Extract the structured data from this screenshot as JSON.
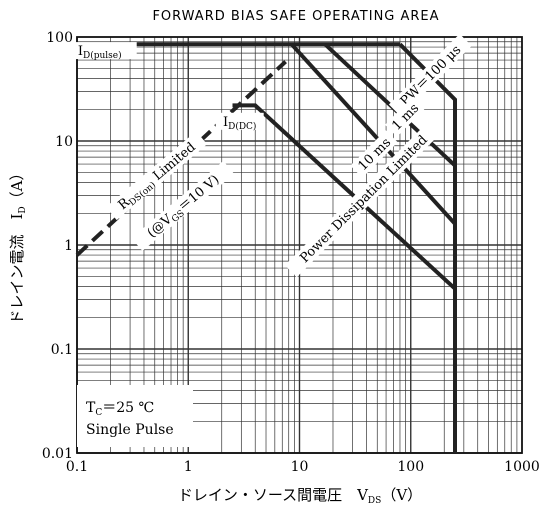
{
  "chart_data": {
    "type": "line",
    "title": "FORWARD BIAS SAFE OPERATING AREA",
    "xlabel": {
      "main": "ドレイン・ソース間電圧　V",
      "sub": "DS",
      "unit": "（V）"
    },
    "ylabel": {
      "main": "ドレイン電流　I",
      "sub": "D",
      "unit": "（A）"
    },
    "xscale": "log",
    "yscale": "log",
    "xlim": [
      0.1,
      1000
    ],
    "ylim": [
      0.01,
      100
    ],
    "grid": true,
    "x_ticks": [
      "0.1",
      "1",
      "10",
      "100",
      "1000"
    ],
    "y_ticks": [
      "0.01",
      "0.1",
      "1",
      "10",
      "100"
    ],
    "color": "#333333",
    "series": [
      {
        "key": "rds",
        "style": "dashed",
        "x": [
          0.1,
          7.5
        ],
        "y": [
          0.8,
          58
        ]
      },
      {
        "key": "id_pulse",
        "style": "solid",
        "x": [
          0.1,
          80
        ],
        "y": [
          85,
          85
        ]
      },
      {
        "key": "pw100",
        "style": "solid",
        "x": [
          80,
          250,
          250
        ],
        "y": [
          85,
          25,
          0.01
        ]
      },
      {
        "key": "ms1",
        "style": "solid",
        "x": [
          17,
          250
        ],
        "y": [
          85,
          5.8
        ]
      },
      {
        "key": "ms10",
        "style": "solid",
        "x": [
          8.5,
          250
        ],
        "y": [
          85,
          1.6
        ]
      },
      {
        "key": "dc",
        "style": "solid",
        "x": [
          2.5,
          4,
          250
        ],
        "y": [
          22,
          22,
          0.38
        ]
      }
    ],
    "annotations": {
      "id_pulse": {
        "main": "I",
        "sub": "D(pulse)",
        "x": 0.16,
        "y": 67
      },
      "id_dc": {
        "main": "I",
        "sub": "D(DC)",
        "x": 2.9,
        "y": 14
      },
      "pw": {
        "text": "PW＝100 μs",
        "x": 160,
        "y": 40,
        "angle": -45
      },
      "ms1": {
        "text": "1 ms",
        "x": 95,
        "y": 16,
        "angle": -45
      },
      "ms10": {
        "text": "10 ms",
        "x": 50,
        "y": 7,
        "angle": -45
      },
      "pdl": {
        "text": "Power Dissipation Limited",
        "x": 40,
        "y": 2.6,
        "angle": -45
      },
      "rds_line1": {
        "main": "R",
        "sub": "DS(on)",
        "rest": " Limited",
        "x": 0.55,
        "y": 4.3,
        "angle": -40
      },
      "rds_line2": {
        "pre": "(@V",
        "sub": "GS",
        "rest": "＝10 V)",
        "x": 0.95,
        "y": 2.2,
        "angle": -40
      }
    },
    "note": {
      "line1": "T",
      "line1_sub": "C",
      "line1_rest": "＝25 ℃",
      "line2": "Single Pulse"
    }
  }
}
